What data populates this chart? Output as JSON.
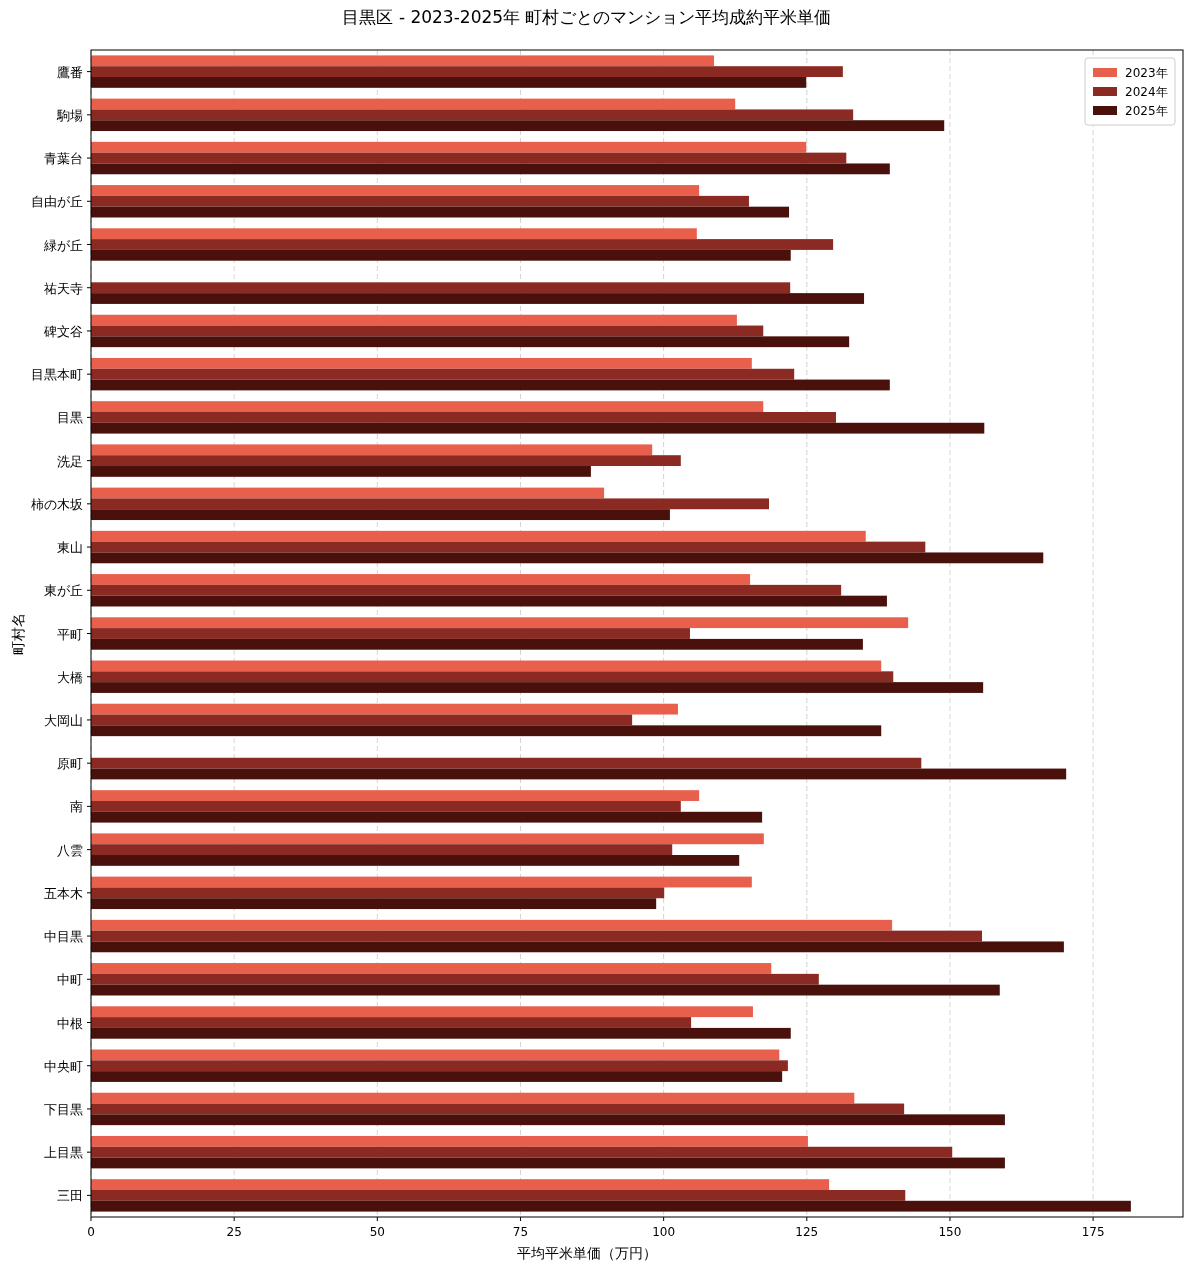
{
  "chart_data": {
    "type": "bar",
    "orientation": "horizontal",
    "title": "目黒区 - 2023-2025年 町村ごとのマンション平均成約平米単価",
    "xlabel": "平均平米単価（万円）",
    "ylabel": "町村名",
    "categories": [
      "鷹番",
      "駒場",
      "青葉台",
      "自由が丘",
      "緑が丘",
      "祐天寺",
      "碑文谷",
      "目黒本町",
      "目黒",
      "洗足",
      "柿の木坂",
      "東山",
      "東が丘",
      "平町",
      "大橋",
      "大岡山",
      "原町",
      "南",
      "八雲",
      "五本木",
      "中目黒",
      "中町",
      "中根",
      "中央町",
      "下目黒",
      "上目黒",
      "三田"
    ],
    "series": [
      {
        "name": "2023年",
        "color": "#e8604c",
        "values": [
          108.8,
          112.5,
          124.9,
          106.2,
          105.8,
          null,
          112.8,
          115.4,
          117.4,
          98.0,
          89.6,
          135.3,
          115.1,
          142.7,
          138.0,
          102.5,
          null,
          106.2,
          117.5,
          115.4,
          139.9,
          118.8,
          115.6,
          120.2,
          133.3,
          125.2,
          128.9
        ]
      },
      {
        "name": "2024年",
        "color": "#8b2a22",
        "values": [
          131.3,
          133.1,
          131.9,
          114.9,
          129.6,
          122.1,
          117.4,
          122.8,
          130.1,
          103.0,
          118.4,
          145.7,
          131.0,
          104.6,
          140.1,
          94.5,
          145.0,
          103.0,
          101.5,
          100.1,
          155.6,
          127.1,
          104.8,
          121.7,
          142.0,
          150.4,
          142.2
        ]
      },
      {
        "name": "2025年",
        "color": "#4a110c",
        "values": [
          124.9,
          149.0,
          139.5,
          121.9,
          122.2,
          135.0,
          132.4,
          139.5,
          156.0,
          87.3,
          101.1,
          166.3,
          139.0,
          134.8,
          155.8,
          138.0,
          170.3,
          117.2,
          113.2,
          98.7,
          169.9,
          158.7,
          122.2,
          120.7,
          159.6,
          159.6,
          181.6
        ]
      }
    ],
    "xlim": [
      0,
      190.7
    ],
    "xticks": [
      0,
      25,
      50,
      75,
      100,
      125,
      150,
      175
    ],
    "grid": "x",
    "legend": "top right"
  }
}
